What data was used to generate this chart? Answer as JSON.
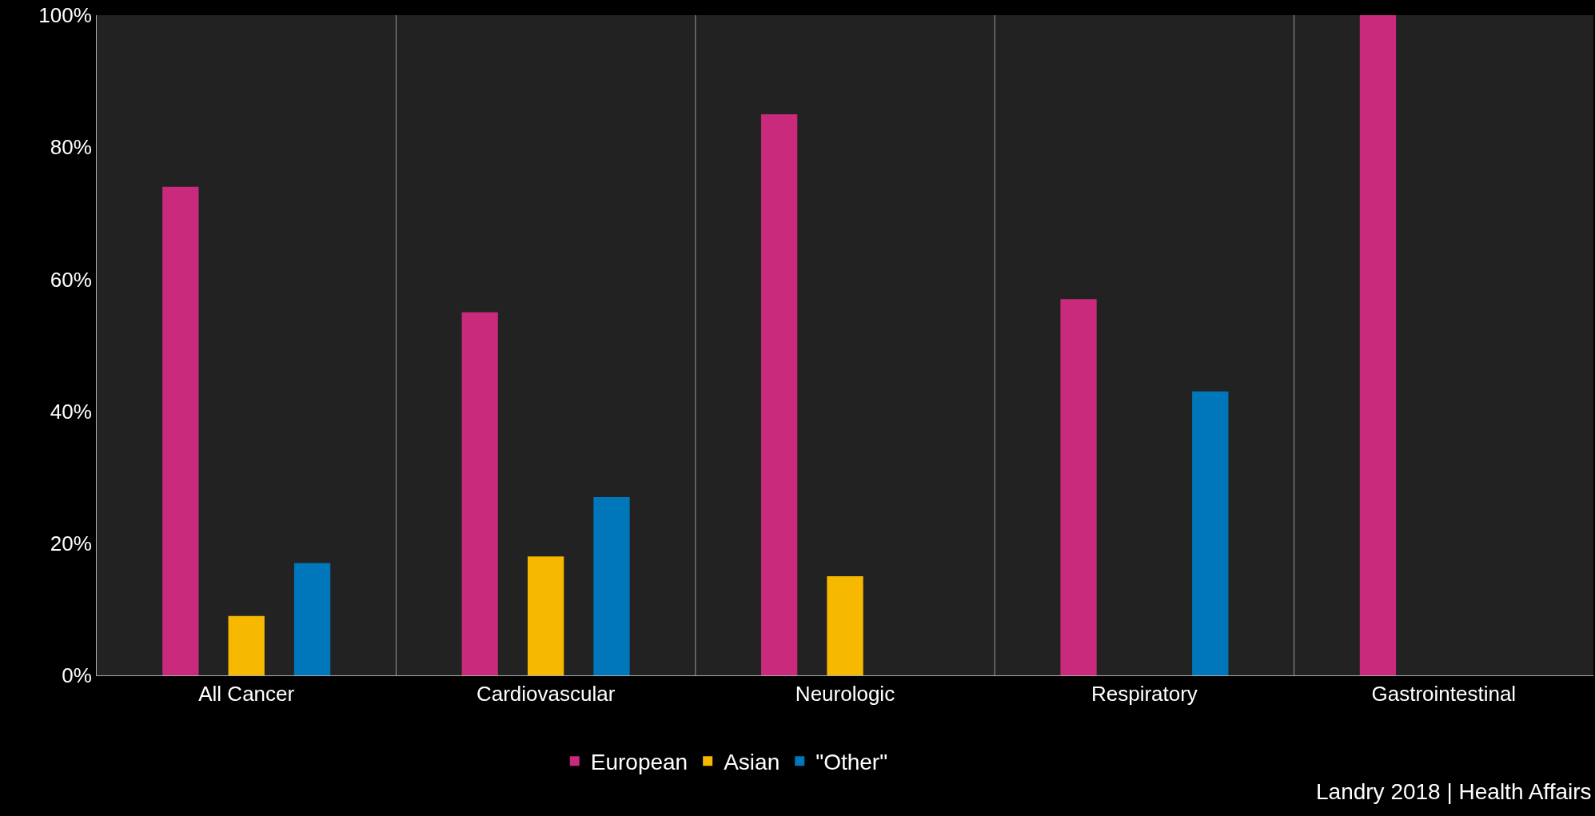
{
  "chart_data": {
    "type": "bar",
    "categories": [
      "All Cancer",
      "Cardiovascular",
      "Neurologic",
      "Respiratory",
      "Gastrointestinal"
    ],
    "series": [
      {
        "name": "European",
        "color": "#c92a7c",
        "values": [
          74,
          55,
          85,
          57,
          100
        ]
      },
      {
        "name": "Asian",
        "color": "#f7b900",
        "values": [
          9,
          18,
          15,
          null,
          null
        ]
      },
      {
        "name": "\"Other\"",
        "color": "#0077bb",
        "values": [
          17,
          27,
          null,
          43,
          null
        ]
      }
    ],
    "ylim": [
      0,
      100
    ],
    "yticks": [
      {
        "value": 0,
        "label": "0%"
      },
      {
        "value": 20,
        "label": "20%"
      },
      {
        "value": 40,
        "label": "40%"
      },
      {
        "value": 60,
        "label": "60%"
      },
      {
        "value": 80,
        "label": "80%"
      },
      {
        "value": 100,
        "label": "100%"
      }
    ],
    "grid": "x",
    "legend": "bottom",
    "annotations": [
      "Landry 2018 | Health Affairs"
    ]
  }
}
